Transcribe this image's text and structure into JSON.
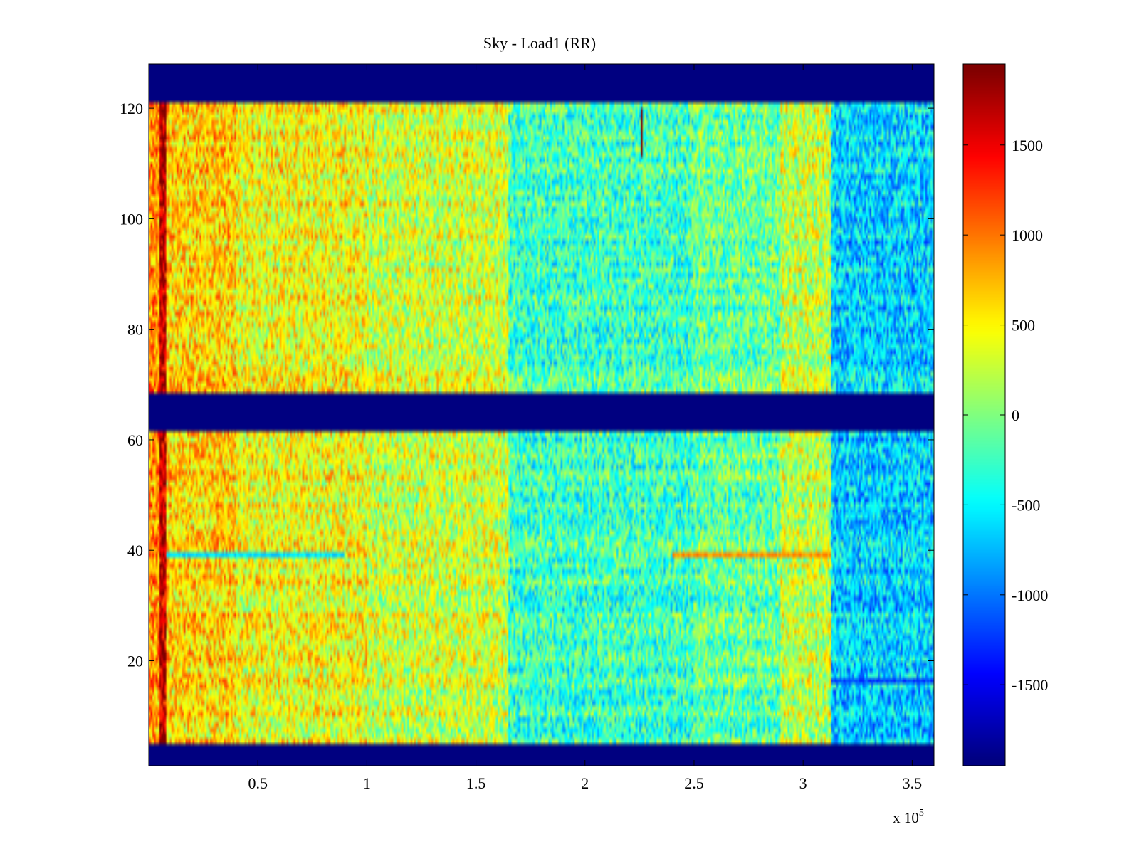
{
  "chart_data": {
    "type": "heatmap",
    "title": "Sky - Load1 (RR)",
    "xlabel": "",
    "ylabel": "",
    "x_multiplier_label": "x 10",
    "x_multiplier_exponent": "5",
    "xlim": [
      0,
      360000
    ],
    "ylim": [
      1,
      128
    ],
    "x_ticks": [
      50000,
      100000,
      150000,
      200000,
      250000,
      300000,
      350000
    ],
    "x_tick_labels": [
      "0.5",
      "1",
      "1.5",
      "2",
      "2.5",
      "3",
      "3.5"
    ],
    "y_ticks": [
      20,
      40,
      60,
      80,
      100,
      120
    ],
    "y_tick_labels": [
      "20",
      "40",
      "60",
      "80",
      "100",
      "120"
    ],
    "colormap": "jet",
    "clim": [
      -1950,
      1950
    ],
    "colorbar": {
      "ticks": [
        1500,
        1000,
        500,
        0,
        -500,
        -1000,
        -1500
      ],
      "tick_labels": [
        "1500",
        "1000",
        "500",
        "0",
        "-500",
        "-1000",
        "-1500"
      ],
      "placement": "right"
    },
    "grid": false,
    "masked_channel_bands": [
      [
        1,
        4
      ],
      [
        62,
        68
      ],
      [
        122,
        128
      ]
    ],
    "mask_value": -1950,
    "x_segments": [
      {
        "x_start": 0,
        "x_end": 5000,
        "mean": 900
      },
      {
        "x_start": 5000,
        "x_end": 8000,
        "mean": 1700
      },
      {
        "x_start": 8000,
        "x_end": 40000,
        "mean": 650
      },
      {
        "x_start": 40000,
        "x_end": 100000,
        "mean": 450
      },
      {
        "x_start": 100000,
        "x_end": 165000,
        "mean": 300
      },
      {
        "x_start": 165000,
        "x_end": 250000,
        "mean": -250
      },
      {
        "x_start": 250000,
        "x_end": 290000,
        "mean": -100
      },
      {
        "x_start": 290000,
        "x_end": 313000,
        "mean": 250
      },
      {
        "x_start": 313000,
        "x_end": 360000,
        "mean": -650
      }
    ],
    "noise_amplitude": 500,
    "features": [
      {
        "kind": "row_stripe",
        "channel": 39,
        "x_start": 8000,
        "x_end": 90000,
        "value": -600
      },
      {
        "kind": "row_stripe",
        "channel": 39,
        "x_start": 240000,
        "x_end": 313000,
        "value": 900
      },
      {
        "kind": "row_stripe",
        "channel": 16,
        "x_start": 313000,
        "x_end": 360000,
        "value": -1200
      },
      {
        "kind": "vertical_spike",
        "x": 226000,
        "channel_start": 112,
        "channel_end": 120,
        "value": 1950
      }
    ]
  },
  "colors": {
    "background": "#ffffff",
    "axis": "#000000",
    "mask": "#00008f"
  }
}
